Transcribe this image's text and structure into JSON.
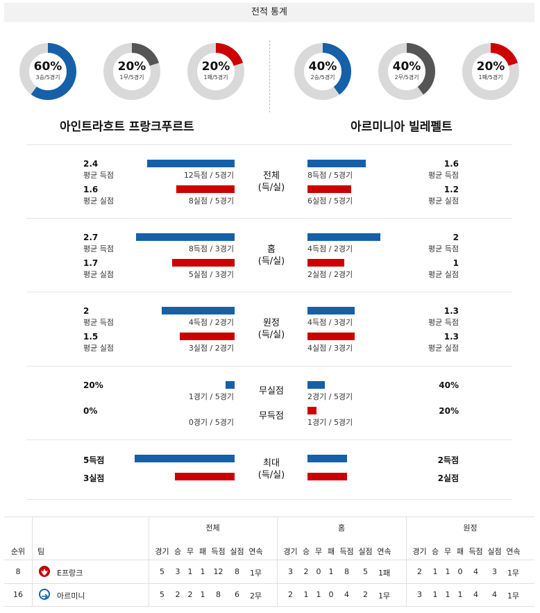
{
  "title": "전적 통계",
  "teams": {
    "home": "아인트라흐트 프랑크푸르트",
    "away": "아르미니아 빌레펠트"
  },
  "donuts": {
    "home": [
      {
        "pct": "60%",
        "sub": "3승/5경기",
        "value": 0.6,
        "color": "#1560a8"
      },
      {
        "pct": "20%",
        "sub": "1무/5경기",
        "value": 0.2,
        "color": "#555555"
      },
      {
        "pct": "20%",
        "sub": "1패/5경기",
        "value": 0.2,
        "color": "#cc0000"
      }
    ],
    "away": [
      {
        "pct": "40%",
        "sub": "2승/5경기",
        "value": 0.4,
        "color": "#1560a8"
      },
      {
        "pct": "40%",
        "sub": "2무/5경기",
        "value": 0.4,
        "color": "#555555"
      },
      {
        "pct": "20%",
        "sub": "1패/5경기",
        "value": 0.2,
        "color": "#cc0000"
      }
    ]
  },
  "sections": {
    "total": {
      "cat": [
        "전체",
        "(득/실)"
      ],
      "home": {
        "scored": "2.4",
        "scored_lbl": "평균 득점",
        "scored_cnt": "12득점 / 5경기",
        "scored_v": 2.4,
        "conceded": "1.6",
        "conceded_lbl": "평균 실점",
        "conceded_cnt": "8실점 / 5경기",
        "conceded_v": 1.6
      },
      "away": {
        "scored": "1.6",
        "scored_lbl": "평균 득점",
        "scored_cnt": "8득점 / 5경기",
        "scored_v": 1.6,
        "conceded": "1.2",
        "conceded_lbl": "평균 실점",
        "conceded_cnt": "6실점 / 5경기",
        "conceded_v": 1.2
      }
    },
    "home": {
      "cat": [
        "홈",
        "(득/실)"
      ],
      "home": {
        "scored": "2.7",
        "scored_lbl": "평균 득점",
        "scored_cnt": "8득점 / 3경기",
        "scored_v": 2.7,
        "conceded": "1.7",
        "conceded_lbl": "평균 실점",
        "conceded_cnt": "5실점 / 3경기",
        "conceded_v": 1.7
      },
      "away": {
        "scored": "2",
        "scored_lbl": "평균 득점",
        "scored_cnt": "4득점 / 2경기",
        "scored_v": 2,
        "conceded": "1",
        "conceded_lbl": "평균 실점",
        "conceded_cnt": "2실점 / 2경기",
        "conceded_v": 1
      }
    },
    "away": {
      "cat": [
        "원정",
        "(득/실)"
      ],
      "home": {
        "scored": "2",
        "scored_lbl": "평균 득점",
        "scored_cnt": "4득점 / 2경기",
        "scored_v": 2,
        "conceded": "1.5",
        "conceded_lbl": "평균 실점",
        "conceded_cnt": "3실점 / 2경기",
        "conceded_v": 1.5
      },
      "away": {
        "scored": "1.3",
        "scored_lbl": "평균 득점",
        "scored_cnt": "4득점 / 3경기",
        "scored_v": 1.3,
        "conceded": "1.3",
        "conceded_lbl": "평균 실점",
        "conceded_cnt": "4실점 / 3경기",
        "conceded_v": 1.3
      }
    },
    "clean": {
      "cat1": "무실점",
      "cat2": "무득점",
      "home": {
        "clean": "20%",
        "clean_cnt": "1경기 / 5경기",
        "clean_v": 0.2,
        "noscore": "0%",
        "noscore_cnt": "0경기 / 5경기",
        "noscore_v": 0
      },
      "away": {
        "clean": "40%",
        "clean_cnt": "2경기 / 5경기",
        "clean_v": 0.4,
        "noscore": "20%",
        "noscore_cnt": "1경기 / 5경기",
        "noscore_v": 0.2
      }
    },
    "max": {
      "cat": [
        "최대",
        "(득/실)"
      ],
      "home": {
        "scored": "5득점",
        "scored_v": 5,
        "conceded": "3실점",
        "conceded_v": 3
      },
      "away": {
        "scored": "2득점",
        "scored_v": 2,
        "conceded": "2실점",
        "conceded_v": 2
      }
    }
  },
  "table": {
    "groups": [
      "전체",
      "홈",
      "원정"
    ],
    "col_rank": "순위",
    "col_team": "팀",
    "cols": [
      "경기",
      "승",
      "무",
      "패",
      "득점",
      "실점",
      "연속"
    ],
    "rows": [
      {
        "rank": "8",
        "team": "E프랑크",
        "logo": "eagle-logo",
        "total": [
          "5",
          "3",
          "1",
          "1",
          "12",
          "8",
          "1무"
        ],
        "home": [
          "3",
          "2",
          "0",
          "1",
          "8",
          "5",
          "1패"
        ],
        "away": [
          "2",
          "1",
          "1",
          "0",
          "4",
          "3",
          "1무"
        ]
      },
      {
        "rank": "16",
        "team": "아르미니",
        "logo": "bielefeld-logo",
        "total": [
          "5",
          "2",
          "2",
          "1",
          "8",
          "6",
          "2무"
        ],
        "home": [
          "2",
          "1",
          "1",
          "0",
          "4",
          "2",
          "1무"
        ],
        "away": [
          "3",
          "1",
          "1",
          "1",
          "4",
          "4",
          "1무"
        ]
      }
    ]
  },
  "colors": {
    "blue": "#1560a8",
    "red": "#cc0000",
    "grey": "#555555",
    "track": "#d9d9d9"
  }
}
